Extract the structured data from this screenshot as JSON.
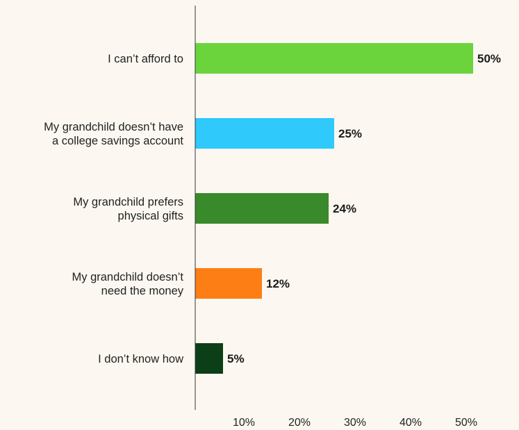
{
  "chart_data": {
    "type": "bar",
    "orientation": "horizontal",
    "categories": [
      "I can’t afford to",
      "My grandchild doesn’t have a college savings account",
      "My grandchild prefers physical gifts",
      "My grandchild doesn’t need the money",
      "I don’t know how"
    ],
    "category_lines": [
      [
        "I can’t afford to"
      ],
      [
        "My grandchild doesn’t have",
        "a college savings account"
      ],
      [
        "My grandchild prefers",
        "physical gifts"
      ],
      [
        "My grandchild doesn’t",
        "need the money"
      ],
      [
        "I don’t know how"
      ]
    ],
    "values": [
      50,
      25,
      24,
      12,
      5
    ],
    "value_labels": [
      "50%",
      "25%",
      "24%",
      "12%",
      "5%"
    ],
    "colors": [
      "#6bd43d",
      "#2fc9fb",
      "#398a2b",
      "#fd7e14",
      "#0c3f17"
    ],
    "xlim": [
      0,
      50
    ],
    "xticks": [
      10,
      20,
      30,
      40,
      50
    ],
    "xtick_labels": [
      "10%",
      "20%",
      "30%",
      "40%",
      "50%"
    ],
    "grid": false,
    "legend": "none",
    "background": "#fcf8f1"
  }
}
